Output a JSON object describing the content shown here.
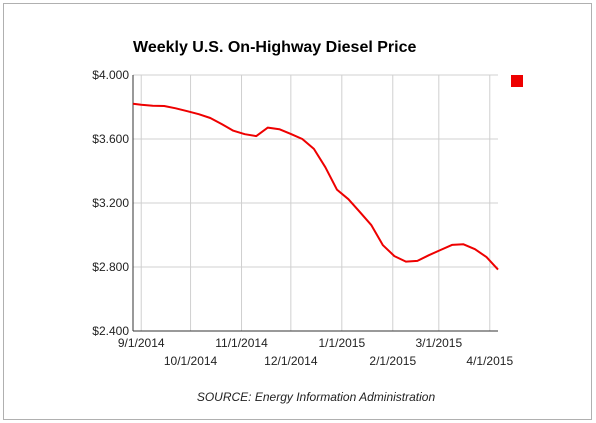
{
  "chart_data": {
    "type": "line",
    "title": "Weekly U.S. On-Highway Diesel Price",
    "xlabel": "",
    "ylabel": "",
    "ylim": [
      2.4,
      4.0
    ],
    "yticks": [
      2.4,
      2.8,
      3.2,
      3.6,
      4.0
    ],
    "ytick_labels": [
      "$2.400",
      "$2.800",
      "$3.200",
      "$3.600",
      "$4.000"
    ],
    "xlim": [
      "2014-08-27",
      "2015-04-06"
    ],
    "xticks": [
      {
        "date": "2014-09-01",
        "label": "9/1/2014",
        "row": 0
      },
      {
        "date": "2014-10-01",
        "label": "10/1/2014",
        "row": 1
      },
      {
        "date": "2014-11-01",
        "label": "11/1/2014",
        "row": 0
      },
      {
        "date": "2014-12-01",
        "label": "12/1/2014",
        "row": 1
      },
      {
        "date": "2015-01-01",
        "label": "1/1/2015",
        "row": 0
      },
      {
        "date": "2015-02-01",
        "label": "2/1/2015",
        "row": 1
      },
      {
        "date": "2015-03-01",
        "label": "3/1/2015",
        "row": 0
      },
      {
        "date": "2015-04-01",
        "label": "4/1/2015",
        "row": 1
      }
    ],
    "grid": true,
    "legend": "top-right",
    "series": [
      {
        "name": "",
        "color": "#ee0000",
        "points": [
          [
            "2014-08-27",
            3.82
          ],
          [
            "2014-09-01",
            3.814
          ],
          [
            "2014-09-08",
            3.808
          ],
          [
            "2014-09-15",
            3.806
          ],
          [
            "2014-09-22",
            3.792
          ],
          [
            "2014-09-29",
            3.774
          ],
          [
            "2014-10-06",
            3.755
          ],
          [
            "2014-10-13",
            3.731
          ],
          [
            "2014-10-20",
            3.693
          ],
          [
            "2014-10-27",
            3.652
          ],
          [
            "2014-11-03",
            3.63
          ],
          [
            "2014-11-10",
            3.618
          ],
          [
            "2014-11-17",
            3.671
          ],
          [
            "2014-11-24",
            3.661
          ],
          [
            "2014-12-01",
            3.632
          ],
          [
            "2014-12-08",
            3.6
          ],
          [
            "2014-12-15",
            3.538
          ],
          [
            "2014-12-22",
            3.423
          ],
          [
            "2014-12-29",
            3.284
          ],
          [
            "2015-01-05",
            3.224
          ],
          [
            "2015-01-12",
            3.143
          ],
          [
            "2015-01-19",
            3.061
          ],
          [
            "2015-01-26",
            2.936
          ],
          [
            "2015-02-02",
            2.868
          ],
          [
            "2015-02-09",
            2.834
          ],
          [
            "2015-02-16",
            2.838
          ],
          [
            "2015-02-23",
            2.874
          ],
          [
            "2015-03-02",
            2.906
          ],
          [
            "2015-03-09",
            2.938
          ],
          [
            "2015-03-16",
            2.942
          ],
          [
            "2015-03-23",
            2.911
          ],
          [
            "2015-03-30",
            2.862
          ],
          [
            "2015-04-06",
            2.784
          ]
        ]
      }
    ]
  },
  "source_note": "SOURCE: Energy Information Administration",
  "legend_color": "#ee0000"
}
